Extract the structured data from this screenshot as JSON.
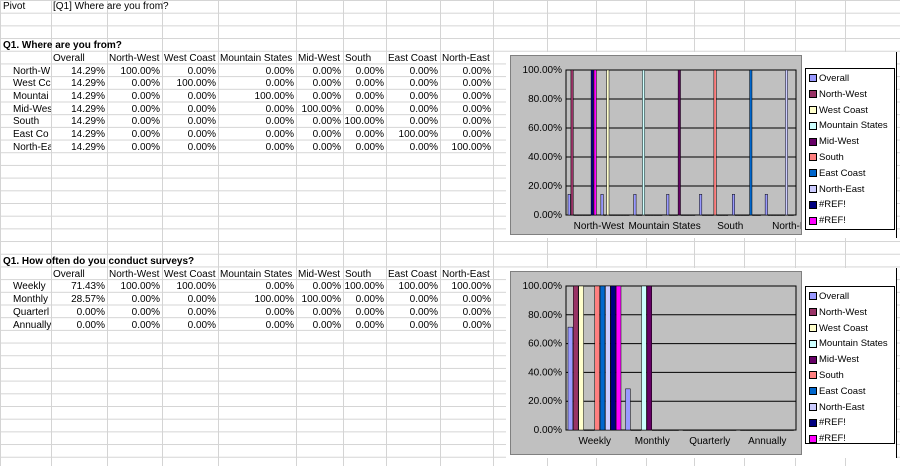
{
  "sheet": {
    "pivot_label": "Pivot",
    "pivot_value": "[Q1] Where are you from?"
  },
  "colors": {
    "Overall": "#9999FF",
    "North-West": "#993366",
    "West Coast": "#FFFFCC",
    "Mountain States": "#CCFFFF",
    "Mid-West": "#660066",
    "South": "#FF8080",
    "East Coast": "#0066CC",
    "North-East": "#CCCCFF",
    "#REF!1": "#000080",
    "#REF!2": "#FF00FF"
  },
  "tables": [
    {
      "title": "Q1. Where are you from?",
      "headers": [
        "Overall",
        "North-West",
        "West Coast",
        "Mountain States",
        "Mid-West",
        "South",
        "East Coast",
        "North-East"
      ],
      "rows": [
        {
          "label": "North-W",
          "values": [
            "14.29%",
            "100.00%",
            "0.00%",
            "0.00%",
            "0.00%",
            "0.00%",
            "0.00%",
            "0.00%"
          ]
        },
        {
          "label": "West Cc",
          "values": [
            "14.29%",
            "0.00%",
            "100.00%",
            "0.00%",
            "0.00%",
            "0.00%",
            "0.00%",
            "0.00%"
          ]
        },
        {
          "label": "Mountai",
          "values": [
            "14.29%",
            "0.00%",
            "0.00%",
            "100.00%",
            "0.00%",
            "0.00%",
            "0.00%",
            "0.00%"
          ]
        },
        {
          "label": "Mid-Wes",
          "values": [
            "14.29%",
            "0.00%",
            "0.00%",
            "0.00%",
            "100.00%",
            "0.00%",
            "0.00%",
            "0.00%"
          ]
        },
        {
          "label": "South",
          "values": [
            "14.29%",
            "0.00%",
            "0.00%",
            "0.00%",
            "0.00%",
            "100.00%",
            "0.00%",
            "0.00%"
          ]
        },
        {
          "label": "East Co",
          "values": [
            "14.29%",
            "0.00%",
            "0.00%",
            "0.00%",
            "0.00%",
            "0.00%",
            "100.00%",
            "0.00%"
          ]
        },
        {
          "label": "North-Ea",
          "values": [
            "14.29%",
            "0.00%",
            "0.00%",
            "0.00%",
            "0.00%",
            "0.00%",
            "0.00%",
            "100.00%"
          ]
        }
      ]
    },
    {
      "title": "Q1. How often do you conduct surveys?",
      "headers": [
        "Overall",
        "North-West",
        "West Coast",
        "Mountain States",
        "Mid-West",
        "South",
        "East Coast",
        "North-East"
      ],
      "rows": [
        {
          "label": "Weekly",
          "values": [
            "71.43%",
            "100.00%",
            "100.00%",
            "0.00%",
            "0.00%",
            "100.00%",
            "100.00%",
            "100.00%"
          ]
        },
        {
          "label": "Monthly",
          "values": [
            "28.57%",
            "0.00%",
            "0.00%",
            "100.00%",
            "100.00%",
            "0.00%",
            "0.00%",
            "0.00%"
          ]
        },
        {
          "label": "Quarterl",
          "values": [
            "0.00%",
            "0.00%",
            "0.00%",
            "0.00%",
            "0.00%",
            "0.00%",
            "0.00%",
            "0.00%"
          ]
        },
        {
          "label": "Annually",
          "values": [
            "0.00%",
            "0.00%",
            "0.00%",
            "0.00%",
            "0.00%",
            "0.00%",
            "0.00%",
            "0.00%"
          ]
        }
      ]
    }
  ],
  "chart_data": [
    {
      "type": "bar",
      "ylim": [
        0,
        100
      ],
      "yticks": [
        "0.00%",
        "20.00%",
        "40.00%",
        "60.00%",
        "80.00%",
        "100.00%"
      ],
      "categories": [
        "North-West",
        "West Coast",
        "Mountain States",
        "Mid-West",
        "South",
        "East Coast",
        "North-East"
      ],
      "xtick_labels": [
        "North-West",
        "Mountain States",
        "South",
        "North-East"
      ],
      "legend": "right",
      "grid": true,
      "series": [
        {
          "name": "Overall",
          "values": [
            14.29,
            14.29,
            14.29,
            14.29,
            14.29,
            14.29,
            14.29
          ]
        },
        {
          "name": "North-West",
          "values": [
            100,
            0,
            0,
            0,
            0,
            0,
            0
          ]
        },
        {
          "name": "West Coast",
          "values": [
            0,
            100,
            0,
            0,
            0,
            0,
            0
          ]
        },
        {
          "name": "Mountain States",
          "values": [
            0,
            0,
            100,
            0,
            0,
            0,
            0
          ]
        },
        {
          "name": "Mid-West",
          "values": [
            0,
            0,
            0,
            100,
            0,
            0,
            0
          ]
        },
        {
          "name": "South",
          "values": [
            0,
            0,
            0,
            0,
            100,
            0,
            0
          ]
        },
        {
          "name": "East Coast",
          "values": [
            0,
            0,
            0,
            0,
            0,
            100,
            0
          ]
        },
        {
          "name": "North-East",
          "values": [
            0,
            0,
            0,
            0,
            0,
            0,
            100
          ]
        },
        {
          "name": "#REF!",
          "values": [
            100,
            0,
            0,
            0,
            0,
            0,
            0
          ]
        },
        {
          "name": "#REF!",
          "values": [
            100,
            0,
            0,
            0,
            0,
            0,
            0
          ]
        }
      ]
    },
    {
      "type": "bar",
      "ylim": [
        0,
        100
      ],
      "yticks": [
        "0.00%",
        "20.00%",
        "40.00%",
        "60.00%",
        "80.00%",
        "100.00%"
      ],
      "categories": [
        "Weekly",
        "Monthly",
        "Quarterly",
        "Annually"
      ],
      "xtick_labels": [
        "Weekly",
        "Monthly",
        "Quarterly",
        "Annually"
      ],
      "legend": "right",
      "grid": true,
      "series": [
        {
          "name": "Overall",
          "values": [
            71.43,
            28.57,
            0,
            0
          ]
        },
        {
          "name": "North-West",
          "values": [
            100,
            0,
            0,
            0
          ]
        },
        {
          "name": "West Coast",
          "values": [
            100,
            0,
            0,
            0
          ]
        },
        {
          "name": "Mountain States",
          "values": [
            0,
            100,
            0,
            0
          ]
        },
        {
          "name": "Mid-West",
          "values": [
            0,
            100,
            0,
            0
          ]
        },
        {
          "name": "South",
          "values": [
            100,
            0,
            0,
            0
          ]
        },
        {
          "name": "East Coast",
          "values": [
            100,
            0,
            0,
            0
          ]
        },
        {
          "name": "North-East",
          "values": [
            100,
            0,
            0,
            0
          ]
        },
        {
          "name": "#REF!",
          "values": [
            100,
            0,
            0,
            0
          ]
        },
        {
          "name": "#REF!",
          "values": [
            100,
            0,
            0,
            0
          ]
        }
      ]
    }
  ]
}
